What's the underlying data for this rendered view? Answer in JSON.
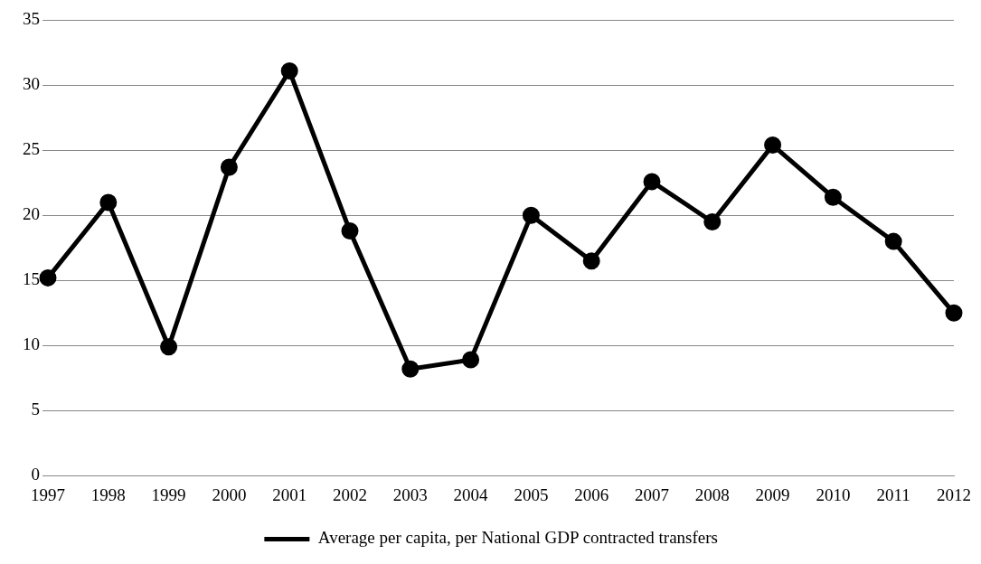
{
  "chart_data": {
    "type": "line",
    "categories": [
      "1997",
      "1998",
      "1999",
      "2000",
      "2001",
      "2002",
      "2003",
      "2004",
      "2005",
      "2006",
      "2007",
      "2008",
      "2009",
      "2010",
      "2011",
      "2012"
    ],
    "series": [
      {
        "name": "Average per capita, per National GDP contracted transfers",
        "color": "#000000",
        "values": [
          15.2,
          21.0,
          9.9,
          23.7,
          31.1,
          18.8,
          8.2,
          8.9,
          20.0,
          16.5,
          22.6,
          19.5,
          25.4,
          21.4,
          18.0,
          12.5
        ]
      }
    ],
    "ylim": [
      0,
      35
    ],
    "yticks": [
      0,
      5,
      10,
      15,
      20,
      25,
      30,
      35
    ],
    "grid": "y",
    "legend": "bottom",
    "marker": "circle",
    "line_style": "solid"
  }
}
